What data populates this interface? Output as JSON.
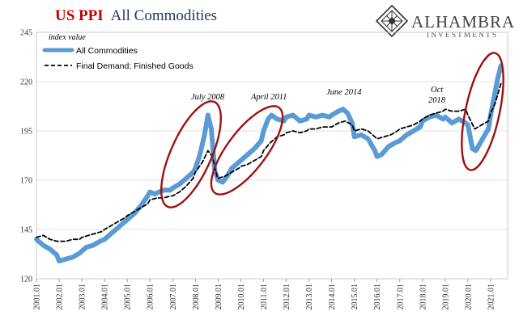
{
  "title": {
    "part1": "US PPI",
    "part2": "All Commodities"
  },
  "brand": {
    "name": "ALHAMBRA",
    "sub": "INVESTMENTS",
    "logo_icon": "diamond-lattice-logo"
  },
  "chart_data": {
    "type": "line",
    "ylabel": "index value",
    "ylim": [
      120,
      245
    ],
    "yticks": [
      120,
      145,
      170,
      195,
      220,
      245
    ],
    "xlim": [
      2001.0,
      2021.75
    ],
    "xtick_labels": [
      "2001.01",
      "2002.01",
      "2003.01",
      "2004.01",
      "2005.01",
      "2006.01",
      "2007.01",
      "2008.01",
      "2009.01",
      "2010.01",
      "2011.01",
      "2012.01",
      "2013.01",
      "2014.01",
      "2015.01",
      "2016.01",
      "2017.01",
      "2018.01",
      "2019.01",
      "2020.01",
      "2021.01"
    ],
    "grid": "horizontal",
    "legend_position": "top-left",
    "series": [
      {
        "name": "All Commodities",
        "color": "#5b9bd5",
        "style": "thick-solid",
        "x": [
          2001.0,
          2001.3,
          2001.6,
          2001.9,
          2002.0,
          2002.3,
          2002.6,
          2002.9,
          2003.0,
          2003.2,
          2003.5,
          2003.8,
          2004.0,
          2004.3,
          2004.6,
          2004.9,
          2005.0,
          2005.3,
          2005.6,
          2005.9,
          2006.0,
          2006.2,
          2006.4,
          2006.6,
          2006.9,
          2007.0,
          2007.3,
          2007.6,
          2007.9,
          2008.0,
          2008.2,
          2008.4,
          2008.55,
          2008.7,
          2008.85,
          2009.0,
          2009.2,
          2009.4,
          2009.6,
          2009.9,
          2010.0,
          2010.3,
          2010.6,
          2010.9,
          2011.0,
          2011.2,
          2011.35,
          2011.6,
          2011.9,
          2012.0,
          2012.3,
          2012.6,
          2012.9,
          2013.0,
          2013.3,
          2013.6,
          2013.9,
          2014.0,
          2014.3,
          2014.5,
          2014.7,
          2014.9,
          2015.0,
          2015.3,
          2015.6,
          2015.9,
          2016.0,
          2016.2,
          2016.5,
          2016.8,
          2017.0,
          2017.3,
          2017.6,
          2017.9,
          2018.0,
          2018.3,
          2018.6,
          2018.9,
          2019.0,
          2019.3,
          2019.6,
          2019.9,
          2020.0,
          2020.2,
          2020.35,
          2020.5,
          2020.7,
          2020.9,
          2021.0,
          2021.15,
          2021.3,
          2021.45
        ],
        "values": [
          140,
          137,
          135,
          132,
          129,
          130,
          131,
          133,
          134,
          136,
          137,
          139,
          140,
          143,
          146,
          149,
          150,
          153,
          157,
          162,
          164,
          163,
          164,
          165,
          165,
          166,
          168,
          171,
          174,
          176,
          183,
          193,
          203,
          196,
          175,
          170,
          169,
          172,
          176,
          179,
          180,
          183,
          186,
          190,
          195,
          201,
          203,
          201,
          200,
          202,
          203,
          200,
          201,
          203,
          202,
          203,
          202,
          203,
          205,
          206,
          204,
          199,
          192,
          193,
          191,
          185,
          182,
          183,
          187,
          189,
          190,
          193,
          195,
          197,
          200,
          202,
          203,
          201,
          202,
          199,
          201,
          199,
          198,
          186,
          185,
          188,
          192,
          196,
          203,
          212,
          221,
          228
        ]
      },
      {
        "name": "Final Demand; Finished Goods",
        "color": "#000000",
        "style": "dashed",
        "x": [
          2001.0,
          2001.3,
          2001.6,
          2001.9,
          2002.0,
          2002.3,
          2002.6,
          2002.9,
          2003.0,
          2003.3,
          2003.6,
          2003.9,
          2004.0,
          2004.3,
          2004.6,
          2004.9,
          2005.0,
          2005.3,
          2005.6,
          2005.9,
          2006.0,
          2006.3,
          2006.6,
          2006.9,
          2007.0,
          2007.3,
          2007.6,
          2007.9,
          2008.0,
          2008.3,
          2008.55,
          2008.75,
          2008.95,
          2009.0,
          2009.3,
          2009.6,
          2009.9,
          2010.0,
          2010.3,
          2010.6,
          2010.9,
          2011.0,
          2011.3,
          2011.6,
          2011.9,
          2012.0,
          2012.3,
          2012.6,
          2012.9,
          2013.0,
          2013.3,
          2013.6,
          2013.9,
          2014.0,
          2014.3,
          2014.6,
          2014.9,
          2015.0,
          2015.3,
          2015.6,
          2015.9,
          2016.0,
          2016.3,
          2016.6,
          2016.9,
          2017.0,
          2017.3,
          2017.6,
          2017.9,
          2018.0,
          2018.3,
          2018.6,
          2018.9,
          2019.0,
          2019.3,
          2019.6,
          2019.9,
          2020.0,
          2020.3,
          2020.6,
          2020.9,
          2021.0,
          2021.2,
          2021.45
        ],
        "values": [
          141,
          142,
          140,
          139,
          139,
          139,
          140,
          140,
          141,
          142,
          143,
          144,
          145,
          147,
          149,
          151,
          152,
          154,
          156,
          158,
          160,
          161,
          161,
          162,
          162,
          164,
          167,
          171,
          174,
          179,
          185,
          182,
          172,
          171,
          172,
          174,
          176,
          177,
          178,
          180,
          182,
          185,
          189,
          192,
          193,
          194,
          195,
          194,
          195,
          196,
          196,
          197,
          197,
          197,
          199,
          200,
          198,
          195,
          196,
          195,
          192,
          191,
          192,
          193,
          195,
          196,
          197,
          198,
          200,
          201,
          203,
          204,
          205,
          206,
          205,
          205,
          206,
          203,
          196,
          198,
          200,
          204,
          209,
          219
        ]
      }
    ],
    "annotations": [
      {
        "text": "July 2008",
        "x": 2008.5
      },
      {
        "text": "April 2011",
        "x": 2011.25
      },
      {
        "text": "June 2014",
        "x": 2014.45
      },
      {
        "text": "Oct",
        "x": 2018.8
      },
      {
        "text": "2018",
        "x": 2018.8
      }
    ],
    "highlight_ellipses": [
      {
        "label": "July 2008 peak",
        "color": "#a01010"
      },
      {
        "label": "April 2011 peak",
        "color": "#a01010"
      },
      {
        "label": "2021 surge",
        "color": "#a01010"
      }
    ]
  }
}
